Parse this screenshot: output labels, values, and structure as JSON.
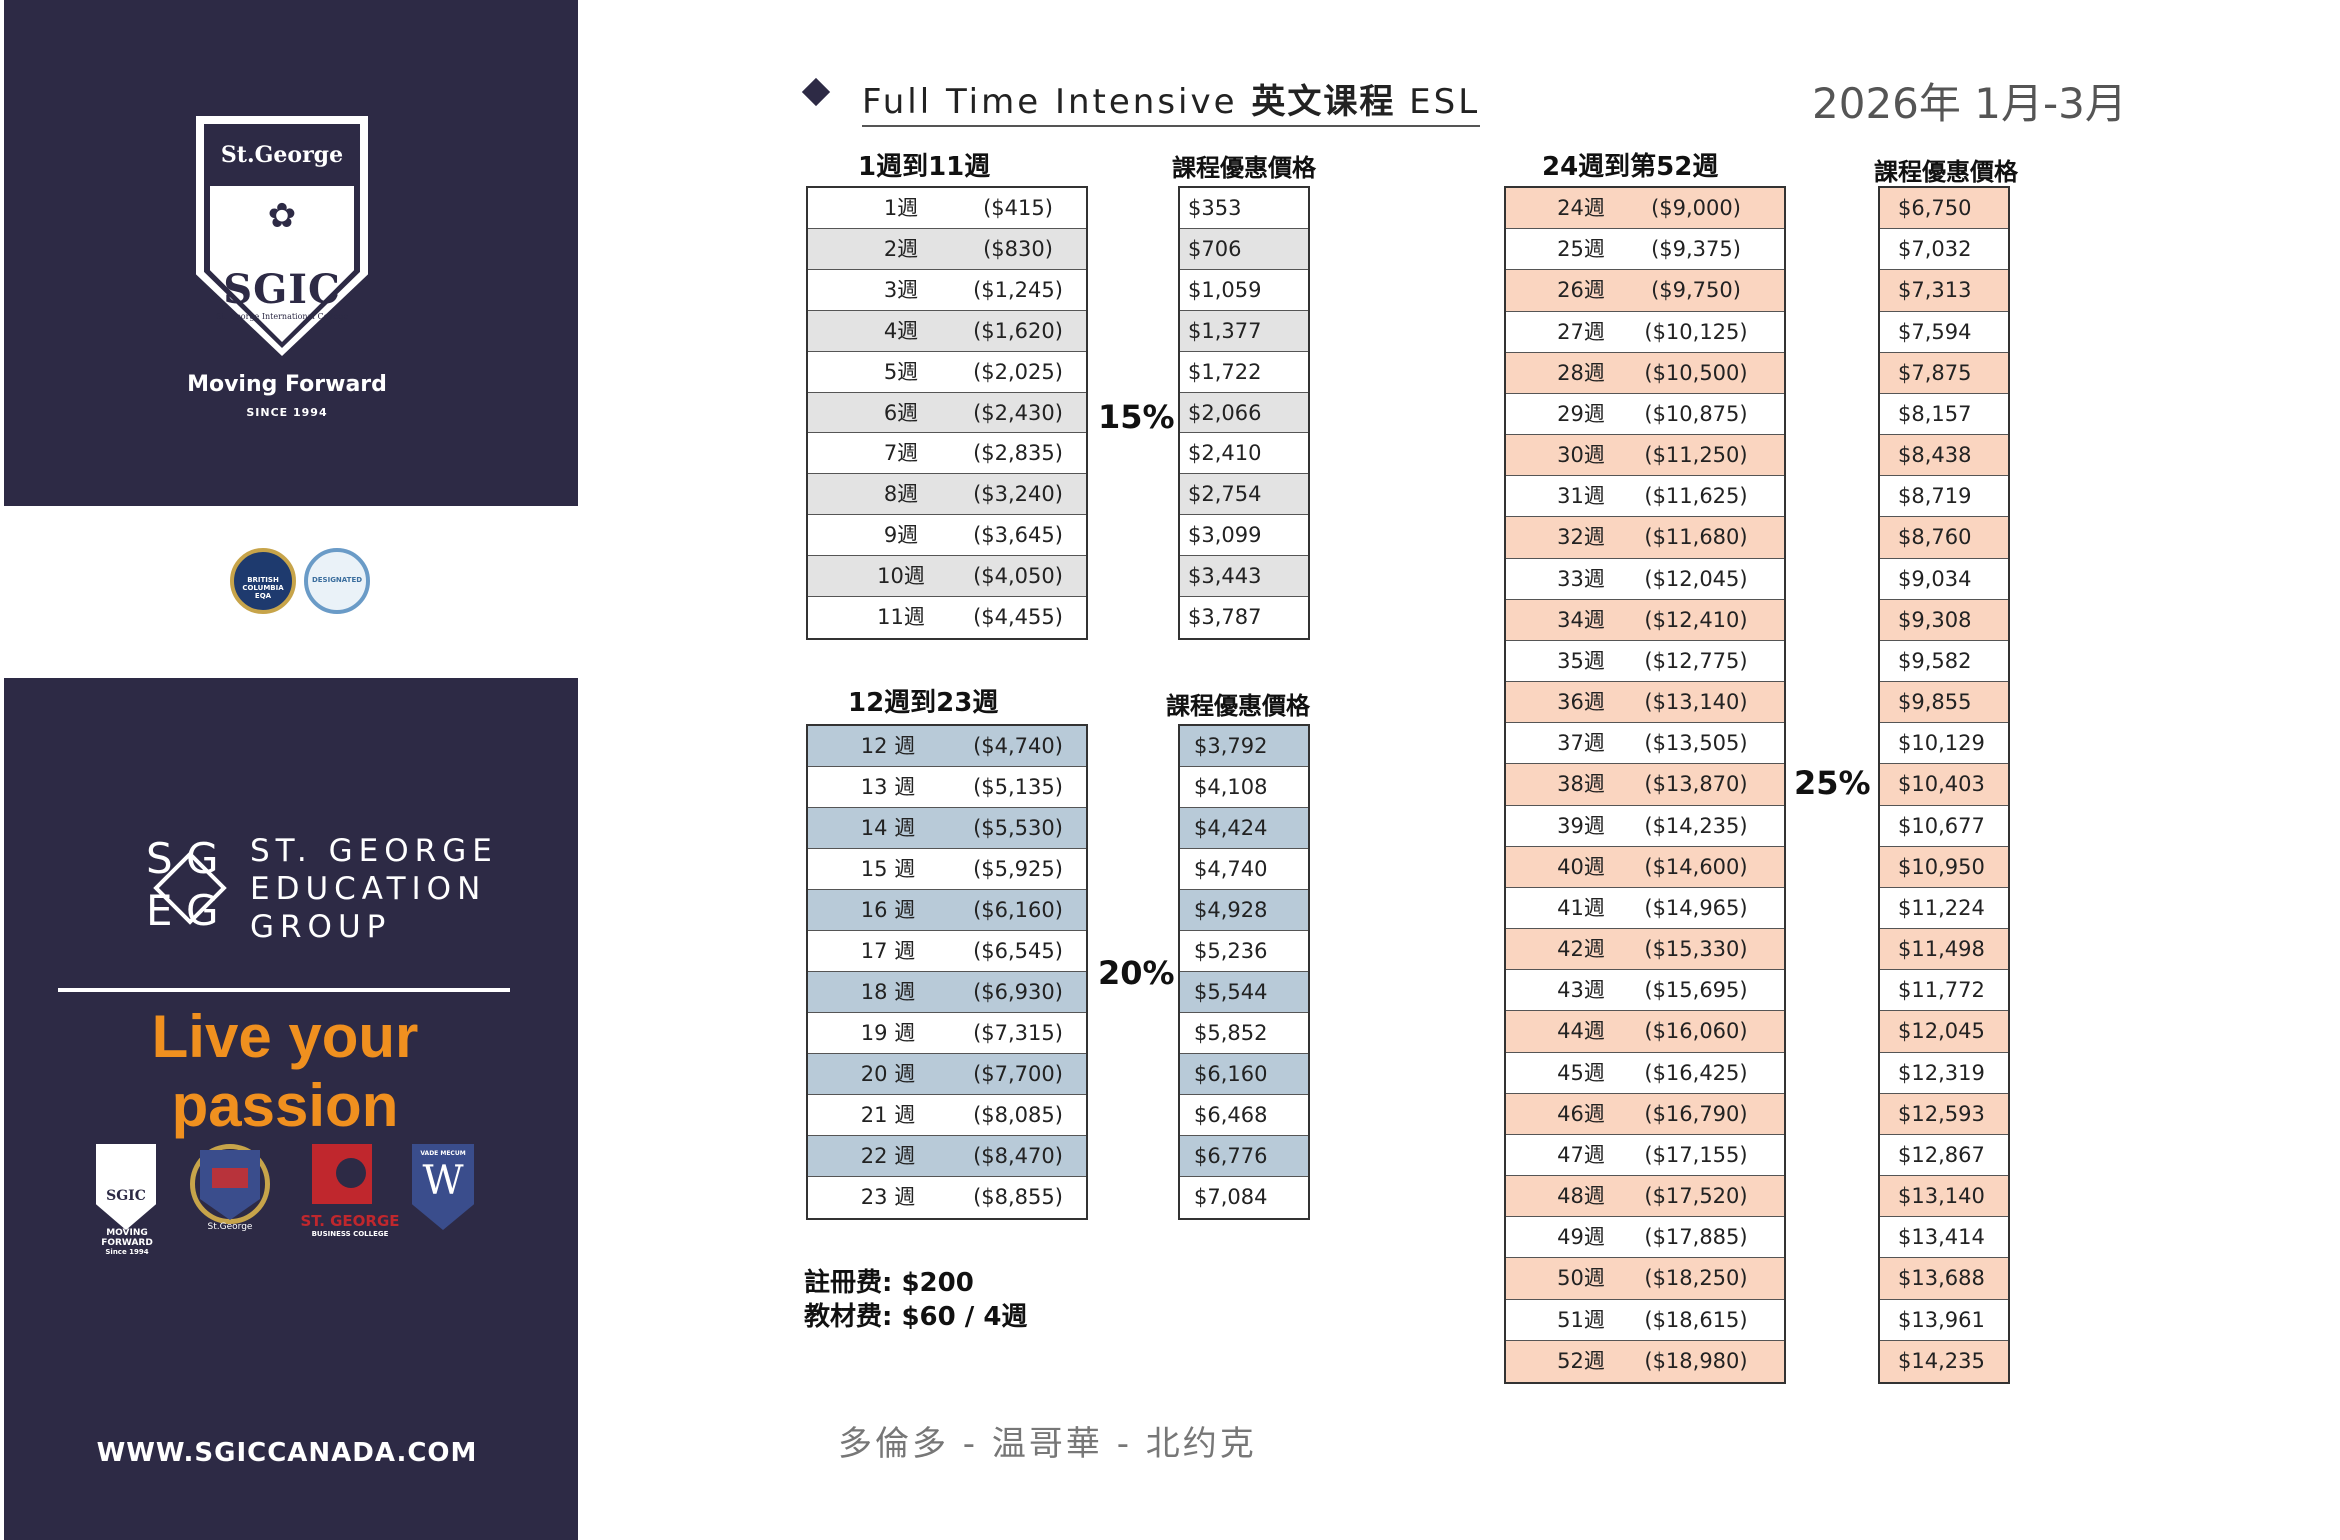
{
  "brand": {
    "shield_top": "St.George",
    "shield_name": "SGIC",
    "shield_college": "St. George International College",
    "tagline": "Moving Forward",
    "since": "SINCE 1994",
    "seal_left": "BRITISH COLUMBIA EQA",
    "seal_right": "DESIGNATED",
    "group_line1": "ST.  GEORGE",
    "group_line2": "EDUCATION",
    "group_line3": "GROUP",
    "passion": "Live your passion",
    "brand_sgic_caption": "MOVING FORWARD",
    "brand_sgic_since": "Since 1994",
    "brand_crest_caption": "St.George",
    "brand_sgbc_caption": "ST. GEORGE",
    "brand_sgbc_sub": "BUSINESS COLLEGE",
    "brand_w_caption": "VADE MECUM",
    "website": "WWW.SGICCANADA.COM"
  },
  "header": {
    "title_en": "Full Time Intensive",
    "title_cn": "英文课程",
    "title_tail": "ESL",
    "date": "2026年 1月-3月"
  },
  "section1": {
    "heading": "1週到11週",
    "price_heading": "課程優惠價格",
    "discount": "15%",
    "rows": [
      {
        "week": "1週",
        "orig": "($415)",
        "price": "$353"
      },
      {
        "week": "2週",
        "orig": "($830)",
        "price": "$706"
      },
      {
        "week": "3週",
        "orig": "($1,245)",
        "price": "$1,059"
      },
      {
        "week": "4週",
        "orig": "($1,620)",
        "price": "$1,377"
      },
      {
        "week": "5週",
        "orig": "($2,025)",
        "price": "$1,722"
      },
      {
        "week": "6週",
        "orig": "($2,430)",
        "price": "$2,066"
      },
      {
        "week": "7週",
        "orig": "($2,835)",
        "price": "$2,410"
      },
      {
        "week": "8週",
        "orig": "($3,240)",
        "price": "$2,754"
      },
      {
        "week": "9週",
        "orig": "($3,645)",
        "price": "$3,099"
      },
      {
        "week": "10週",
        "orig": "($4,050)",
        "price": "$3,443"
      },
      {
        "week": "11週",
        "orig": "($4,455)",
        "price": "$3,787"
      }
    ]
  },
  "section2": {
    "heading": "12週到23週",
    "price_heading": "課程優惠價格",
    "discount": "20%",
    "rows": [
      {
        "week": "12 週",
        "orig": "($4,740)",
        "price": "$3,792"
      },
      {
        "week": "13 週",
        "orig": "($5,135)",
        "price": "$4,108"
      },
      {
        "week": "14 週",
        "orig": "($5,530)",
        "price": "$4,424"
      },
      {
        "week": "15 週",
        "orig": "($5,925)",
        "price": "$4,740"
      },
      {
        "week": "16 週",
        "orig": "($6,160)",
        "price": "$4,928"
      },
      {
        "week": "17 週",
        "orig": "($6,545)",
        "price": "$5,236"
      },
      {
        "week": "18 週",
        "orig": "($6,930)",
        "price": "$5,544"
      },
      {
        "week": "19 週",
        "orig": "($7,315)",
        "price": "$5,852"
      },
      {
        "week": "20 週",
        "orig": "($7,700)",
        "price": "$6,160"
      },
      {
        "week": "21 週",
        "orig": "($8,085)",
        "price": "$6,468"
      },
      {
        "week": "22 週",
        "orig": "($8,470)",
        "price": "$6,776"
      },
      {
        "week": "23 週",
        "orig": "($8,855)",
        "price": "$7,084"
      }
    ]
  },
  "section3": {
    "heading": "24週到第52週",
    "price_heading": "課程優惠價格",
    "discount": "25%",
    "rows": [
      {
        "week": "24週",
        "orig": "($9,000)",
        "price": "$6,750"
      },
      {
        "week": "25週",
        "orig": "($9,375)",
        "price": "$7,032"
      },
      {
        "week": "26週",
        "orig": "($9,750)",
        "price": "$7,313"
      },
      {
        "week": "27週",
        "orig": "($10,125)",
        "price": "$7,594"
      },
      {
        "week": "28週",
        "orig": "($10,500)",
        "price": "$7,875"
      },
      {
        "week": "29週",
        "orig": "($10,875)",
        "price": "$8,157"
      },
      {
        "week": "30週",
        "orig": "($11,250)",
        "price": "$8,438"
      },
      {
        "week": "31週",
        "orig": "($11,625)",
        "price": "$8,719"
      },
      {
        "week": "32週",
        "orig": "($11,680)",
        "price": "$8,760"
      },
      {
        "week": "33週",
        "orig": "($12,045)",
        "price": "$9,034"
      },
      {
        "week": "34週",
        "orig": "($12,410)",
        "price": "$9,308"
      },
      {
        "week": "35週",
        "orig": "($12,775)",
        "price": "$9,582"
      },
      {
        "week": "36週",
        "orig": "($13,140)",
        "price": "$9,855"
      },
      {
        "week": "37週",
        "orig": "($13,505)",
        "price": "$10,129"
      },
      {
        "week": "38週",
        "orig": "($13,870)",
        "price": "$10,403"
      },
      {
        "week": "39週",
        "orig": "($14,235)",
        "price": "$10,677"
      },
      {
        "week": "40週",
        "orig": "($14,600)",
        "price": "$10,950"
      },
      {
        "week": "41週",
        "orig": "($14,965)",
        "price": "$11,224"
      },
      {
        "week": "42週",
        "orig": "($15,330)",
        "price": "$11,498"
      },
      {
        "week": "43週",
        "orig": "($15,695)",
        "price": "$11,772"
      },
      {
        "week": "44週",
        "orig": "($16,060)",
        "price": "$12,045"
      },
      {
        "week": "45週",
        "orig": "($16,425)",
        "price": "$12,319"
      },
      {
        "week": "46週",
        "orig": "($16,790)",
        "price": "$12,593"
      },
      {
        "week": "47週",
        "orig": "($17,155)",
        "price": "$12,867"
      },
      {
        "week": "48週",
        "orig": "($17,520)",
        "price": "$13,140"
      },
      {
        "week": "49週",
        "orig": "($17,885)",
        "price": "$13,414"
      },
      {
        "week": "50週",
        "orig": "($18,250)",
        "price": "$13,688"
      },
      {
        "week": "51週",
        "orig": "($18,615)",
        "price": "$13,961"
      },
      {
        "week": "52週",
        "orig": "($18,980)",
        "price": "$14,235"
      }
    ]
  },
  "fees": {
    "registration": "註冊费: $200",
    "materials": "教材费: $60 / 4週"
  },
  "footer": {
    "cities": "多倫多 - 温哥華 - 北约克"
  },
  "colors": {
    "navy": "#2d2a45",
    "orange": "#f0901f",
    "gray_stripe": "#e3e3e3",
    "blue_stripe": "#b8cad8",
    "peach_stripe": "#fad5c0"
  }
}
